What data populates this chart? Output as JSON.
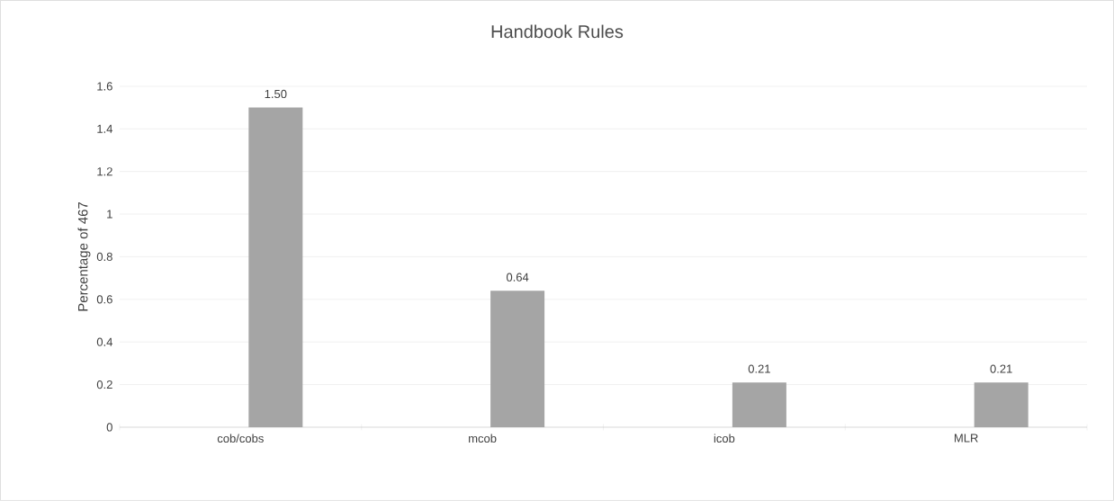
{
  "chart_data": {
    "type": "bar",
    "title": "Handbook Rules",
    "ylabel": "Percentage of 467",
    "categories": [
      "cob/cobs",
      "mcob",
      "icob",
      "MLR"
    ],
    "values": [
      1.5,
      0.64,
      0.21,
      0.21
    ],
    "value_labels": [
      "1.50",
      "0.64",
      "0.21",
      "0.21"
    ],
    "color": "#a5a5a5",
    "ylim": [
      0,
      1.6
    ],
    "yticks": [
      0,
      0.2,
      0.4,
      0.6,
      0.8,
      1,
      1.2,
      1.4,
      1.6
    ],
    "grid": "y"
  }
}
